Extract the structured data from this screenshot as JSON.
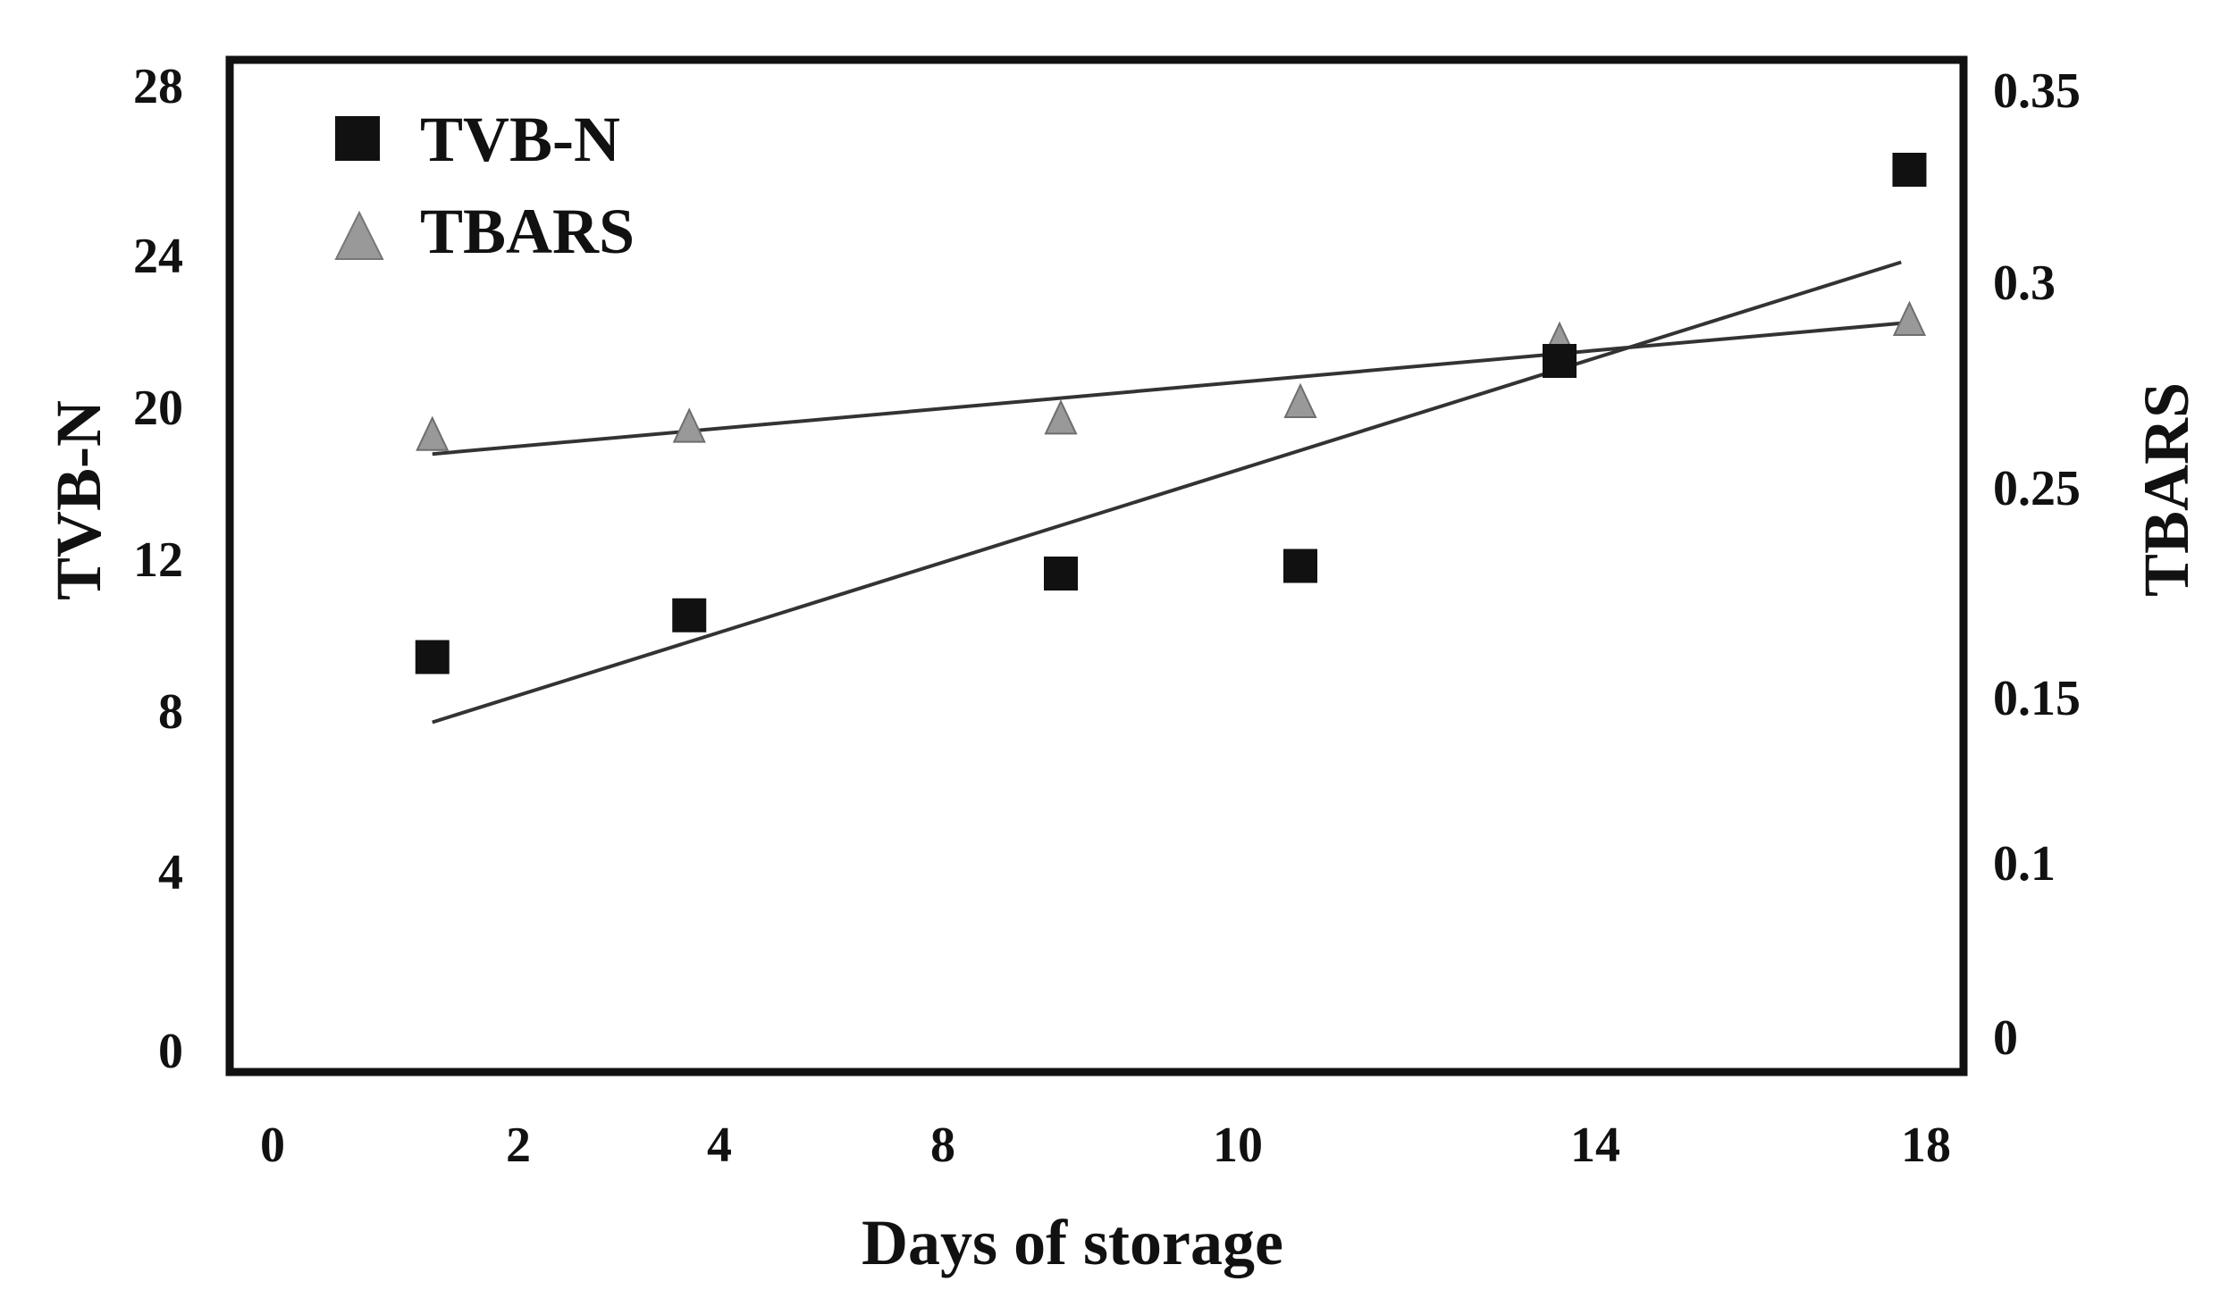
{
  "chart_data": {
    "type": "scatter",
    "x_tick_labels": [
      "0",
      "2",
      "4",
      "8",
      "10",
      "14",
      "18"
    ],
    "left_tick_labels": [
      "0",
      "4",
      "8",
      "12",
      "20",
      "24",
      "28"
    ],
    "right_tick_labels": [
      "0",
      "0.1",
      "0.15",
      "0.25",
      "0.3",
      "0.35"
    ],
    "xlabel": "Days of storage",
    "ylabel_left": "TVB-N",
    "ylabel_right": "TBARS",
    "legend_position": "top-left",
    "grid": false,
    "series": [
      {
        "name": "TVB-N",
        "axis": "left",
        "marker": "square",
        "color": "#111111",
        "points": [
          {
            "x": 1.3,
            "y": 9.4
          },
          {
            "x": 3.7,
            "y": 10.5
          },
          {
            "x": 8.8,
            "y": 11.6
          },
          {
            "x": 10.7,
            "y": 11.8
          },
          {
            "x": 13.6,
            "y": 21.2
          },
          {
            "x": 17.8,
            "y": 26.0
          }
        ],
        "trend": [
          {
            "x": 1.3,
            "y": 7.7
          },
          {
            "x": 17.7,
            "y": 23.8
          }
        ]
      },
      {
        "name": "TBARS",
        "axis": "right",
        "marker": "triangle",
        "color": "#888888",
        "points": [
          {
            "x": 1.3,
            "y": 0.262
          },
          {
            "x": 3.7,
            "y": 0.264
          },
          {
            "x": 8.8,
            "y": 0.266
          },
          {
            "x": 10.7,
            "y": 0.27
          },
          {
            "x": 13.6,
            "y": 0.285
          },
          {
            "x": 17.8,
            "y": 0.29
          }
        ],
        "trend": [
          {
            "x": 1.3,
            "y": 0.258
          },
          {
            "x": 17.8,
            "y": 0.29
          }
        ]
      }
    ]
  }
}
